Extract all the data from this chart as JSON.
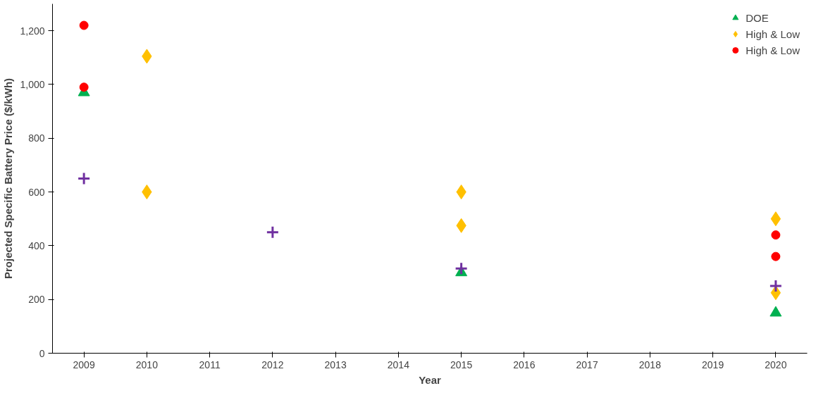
{
  "chart_data": {
    "type": "scatter",
    "xlabel": "Year",
    "ylabel": "Projected Specific Battery Price ($/kWh)",
    "xlim": [
      2008.5,
      2020.5
    ],
    "xticks": [
      2009,
      2010,
      2011,
      2012,
      2013,
      2014,
      2015,
      2016,
      2017,
      2018,
      2019,
      2020
    ],
    "ylim": [
      0,
      1300
    ],
    "yticks": [
      {
        "value": 0,
        "label": "0"
      },
      {
        "value": 200,
        "label": "200"
      },
      {
        "value": 400,
        "label": "400"
      },
      {
        "value": 600,
        "label": "600"
      },
      {
        "value": 800,
        "label": "800"
      },
      {
        "value": 1000,
        "label": "1,000"
      },
      {
        "value": 1200,
        "label": "1,200"
      }
    ],
    "grid": false,
    "legend": "top right",
    "series": [
      {
        "name": "DOE",
        "color": "#00b050",
        "marker": "triangle",
        "x": [
          2009,
          2015,
          2020
        ],
        "values": [
          970,
          300,
          150
        ]
      },
      {
        "name": "High & Low",
        "color": "#ffc000",
        "marker": "diamond",
        "x": [
          2010,
          2010,
          2015,
          2015,
          2020,
          2020
        ],
        "values": [
          1105,
          600,
          600,
          475,
          500,
          225
        ]
      },
      {
        "name": "High & Low",
        "color": "#ff0000",
        "marker": "circle",
        "x": [
          2009,
          2009,
          2020,
          2020
        ],
        "values": [
          1220,
          990,
          440,
          360
        ]
      },
      {
        "color": "#7030a0",
        "marker": "cross",
        "x": [
          2009,
          2012,
          2015,
          2020
        ],
        "values": [
          650,
          450,
          315,
          250
        ]
      }
    ]
  }
}
